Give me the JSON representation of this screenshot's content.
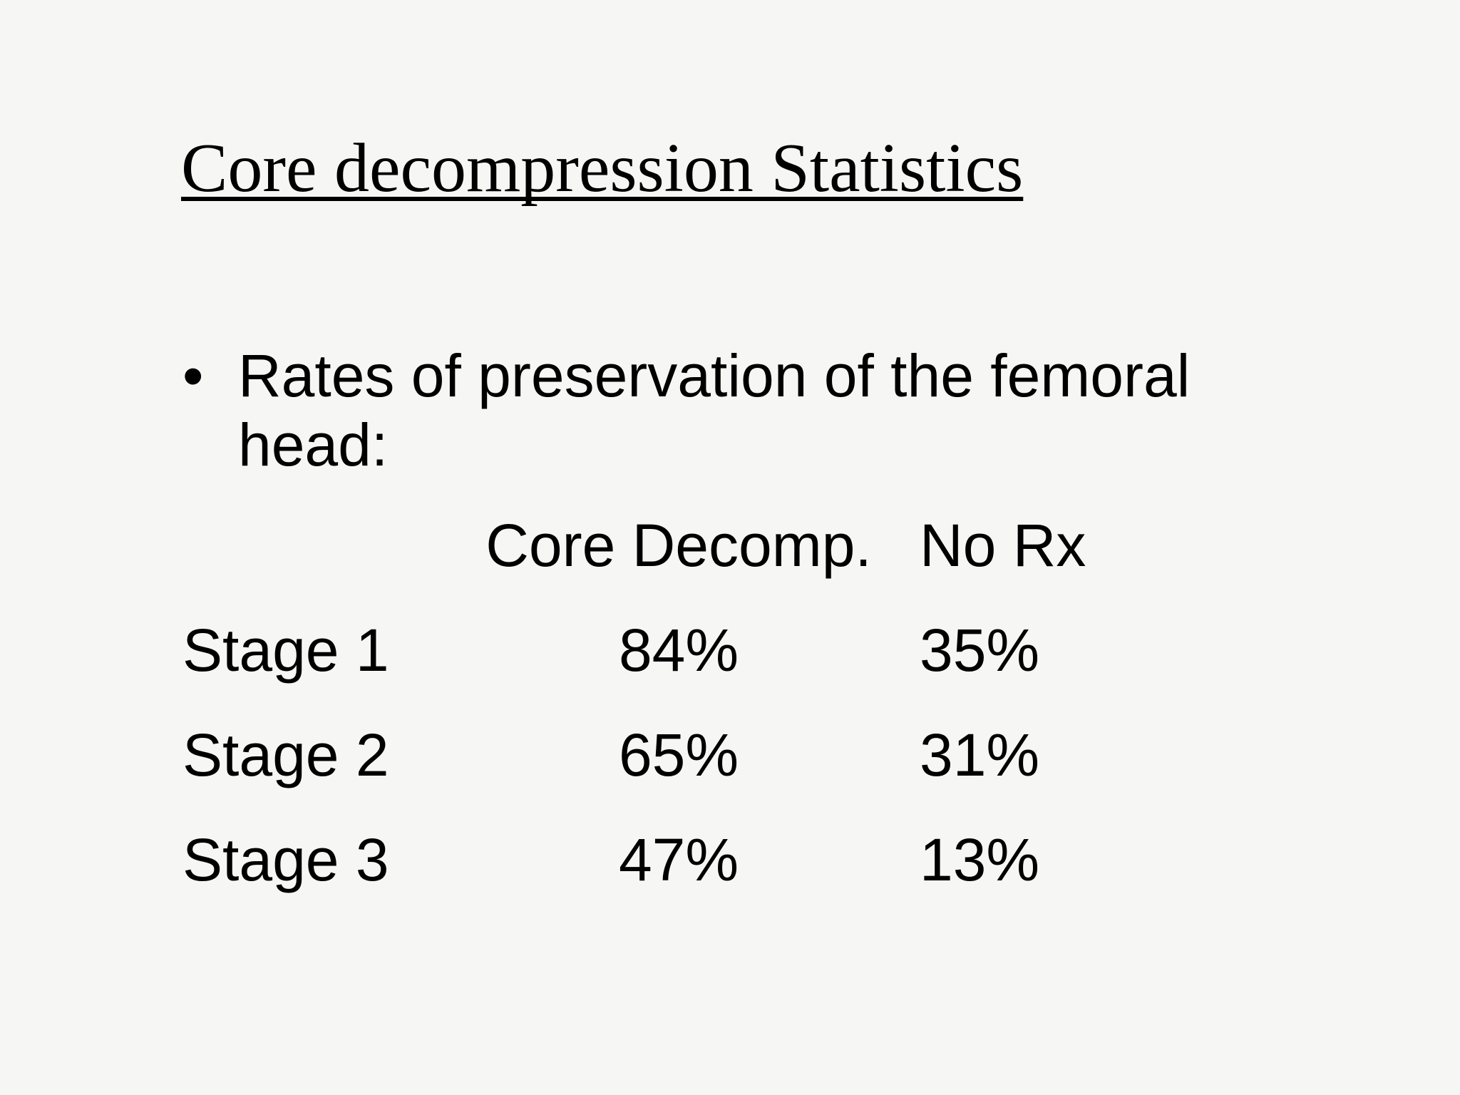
{
  "slide": {
    "title": "Core decompression Statistics",
    "bullet": {
      "marker": "•",
      "text": "Rates of preservation of the femoral head:"
    },
    "table": {
      "header": {
        "stage_column": "",
        "core_decomp": "Core Decomp.",
        "no_rx": "No Rx"
      },
      "rows": [
        {
          "label": "Stage 1",
          "core_decomp": "84%",
          "no_rx": "35%"
        },
        {
          "label": "Stage 2",
          "core_decomp": "65%",
          "no_rx": "31%"
        },
        {
          "label": "Stage 3",
          "core_decomp": "47%",
          "no_rx": "13%"
        }
      ]
    },
    "colors": {
      "background": "#f6f6f5",
      "text": "#000000"
    }
  }
}
